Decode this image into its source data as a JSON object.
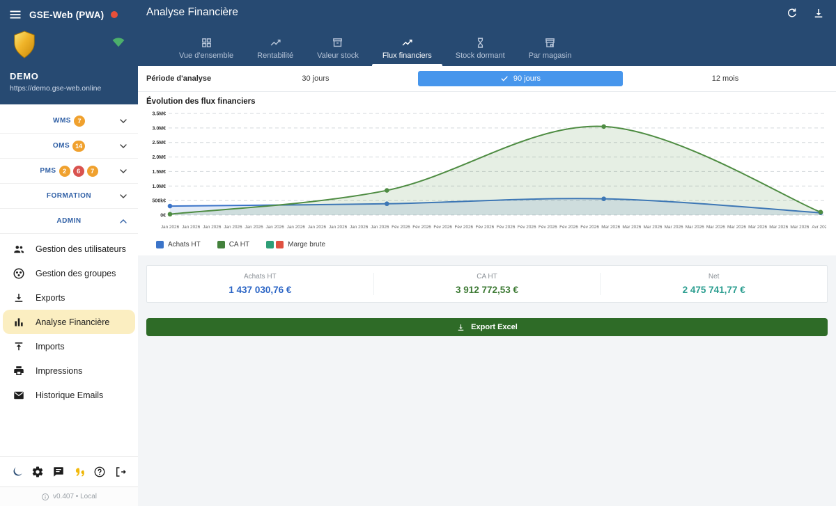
{
  "app": {
    "name": "GSE-Web (PWA)",
    "environment": "DEMO",
    "url": "https://demo.gse-web.online",
    "version": "v0.407 • Local"
  },
  "header": {
    "title": "Analyse Financière",
    "actions": [
      {
        "icon": "refresh-icon"
      },
      {
        "icon": "download-icon"
      }
    ]
  },
  "tabs": [
    {
      "label": "Vue d'ensemble",
      "icon": "dashboard-icon",
      "active": false
    },
    {
      "label": "Rentabilité",
      "icon": "trending-up-icon",
      "active": false
    },
    {
      "label": "Valeur stock",
      "icon": "inventory-icon",
      "active": false
    },
    {
      "label": "Flux financiers",
      "icon": "line-chart-icon",
      "active": true
    },
    {
      "label": "Stock dormant",
      "icon": "hourglass-icon",
      "active": false
    },
    {
      "label": "Par magasin",
      "icon": "store-icon",
      "active": false
    }
  ],
  "sidebar": {
    "sections": [
      {
        "label": "WMS",
        "badges": [
          {
            "text": "7",
            "color": "#f0a12e"
          }
        ],
        "state": "collapsed"
      },
      {
        "label": "OMS",
        "badges": [
          {
            "text": "14",
            "color": "#f0a12e"
          }
        ],
        "state": "collapsed"
      },
      {
        "label": "PMS",
        "badges": [
          {
            "text": "2",
            "color": "#f0a12e"
          },
          {
            "text": "6",
            "color": "#d9534f"
          },
          {
            "text": "7",
            "color": "#f0a12e"
          }
        ],
        "state": "collapsed"
      },
      {
        "label": "FORMATION",
        "badges": [],
        "state": "collapsed"
      },
      {
        "label": "ADMIN",
        "badges": [],
        "state": "expanded"
      }
    ],
    "admin_items": [
      {
        "label": "Gestion des utilisateurs",
        "icon": "users-icon",
        "active": false
      },
      {
        "label": "Gestion des groupes",
        "icon": "groups-icon",
        "active": false
      },
      {
        "label": "Exports",
        "icon": "export-download-icon",
        "active": false
      },
      {
        "label": "Analyse Financière",
        "icon": "bar-chart-icon",
        "active": true
      },
      {
        "label": "Imports",
        "icon": "upload-icon",
        "active": false
      },
      {
        "label": "Impressions",
        "icon": "printer-icon",
        "active": false
      },
      {
        "label": "Historique Emails",
        "icon": "email-icon",
        "active": false
      }
    ],
    "footer_icons": [
      "dark-mode-moon-icon",
      "settings-gear-icon",
      "chat-icon",
      "quotes-icon",
      "help-icon",
      "logout-icon"
    ]
  },
  "period": {
    "label": "Période d'analyse",
    "selected_color": "#4796ec",
    "options": [
      {
        "label": "30 jours",
        "selected": false
      },
      {
        "label": "90 jours",
        "selected": true
      },
      {
        "label": "12 mois",
        "selected": false
      }
    ]
  },
  "chart_data": {
    "type": "line",
    "title": "Évolution des flux financiers",
    "x": [
      "Jan 2026",
      "Fév 2026",
      "Mar 2026",
      "Avr 2026"
    ],
    "series": [
      {
        "name": "Achats HT",
        "color": "#3b74c9",
        "fill": "rgba(59,116,201,0.14)",
        "values": [
          310000,
          390000,
          560000,
          80000
        ]
      },
      {
        "name": "CA HT",
        "color": "#4e8c42",
        "fill": "rgba(78,140,66,0.14)",
        "values": [
          30000,
          850000,
          3050000,
          100000
        ]
      }
    ],
    "legend": [
      {
        "name": "Achats HT",
        "colors": [
          "#3b74c9"
        ]
      },
      {
        "name": "CA HT",
        "colors": [
          "#43813c"
        ]
      },
      {
        "name": "Marge brute",
        "colors": [
          "#2f9e77",
          "#e05140"
        ]
      }
    ],
    "y_ticks": [
      {
        "label": "3.5M€",
        "value": 3500000
      },
      {
        "label": "3.0M€",
        "value": 3000000
      },
      {
        "label": "2.5M€",
        "value": 2500000
      },
      {
        "label": "2.0M€",
        "value": 2000000
      },
      {
        "label": "1.5M€",
        "value": 1500000
      },
      {
        "label": "1.0M€",
        "value": 1000000
      },
      {
        "label": "500k€",
        "value": 500000
      },
      {
        "label": "0€",
        "value": 0
      }
    ],
    "ylim": [
      0,
      3500000
    ],
    "grid": "dashed-horizontal",
    "legend_position": "bottom-left",
    "x_tick_labels": [
      "Jan 2026",
      "Jan 2026",
      "Jan 2026",
      "Jan 2026",
      "Jan 2026",
      "Jan 2026",
      "Jan 2026",
      "Jan 2026",
      "Jan 2026",
      "Jan 2026",
      "Jan 2026",
      "Fév 2026",
      "Fév 2026",
      "Fév 2026",
      "Fév 2026",
      "Fév 2026",
      "Fév 2026",
      "Fév 2026",
      "Fév 2026",
      "Fév 2026",
      "Fév 2026",
      "Mar 2026",
      "Mar 2026",
      "Mar 2026",
      "Mar 2026",
      "Mar 2026",
      "Mar 2026",
      "Mar 2026",
      "Mar 2026",
      "Mar 2026",
      "Mar 2026",
      "Avr 2026"
    ]
  },
  "summary_cards": [
    {
      "label": "Achats HT",
      "value": "1 437 030,76 €",
      "color": "#2a64c5"
    },
    {
      "label": "CA HT",
      "value": "3 912 772,53 €",
      "color": "#3d7a34"
    },
    {
      "label": "Net",
      "value": "2 475 741,77 €",
      "color": "#2a9d8f"
    }
  ],
  "export_button": {
    "label": "Export Excel",
    "color": "#2e6b27"
  }
}
